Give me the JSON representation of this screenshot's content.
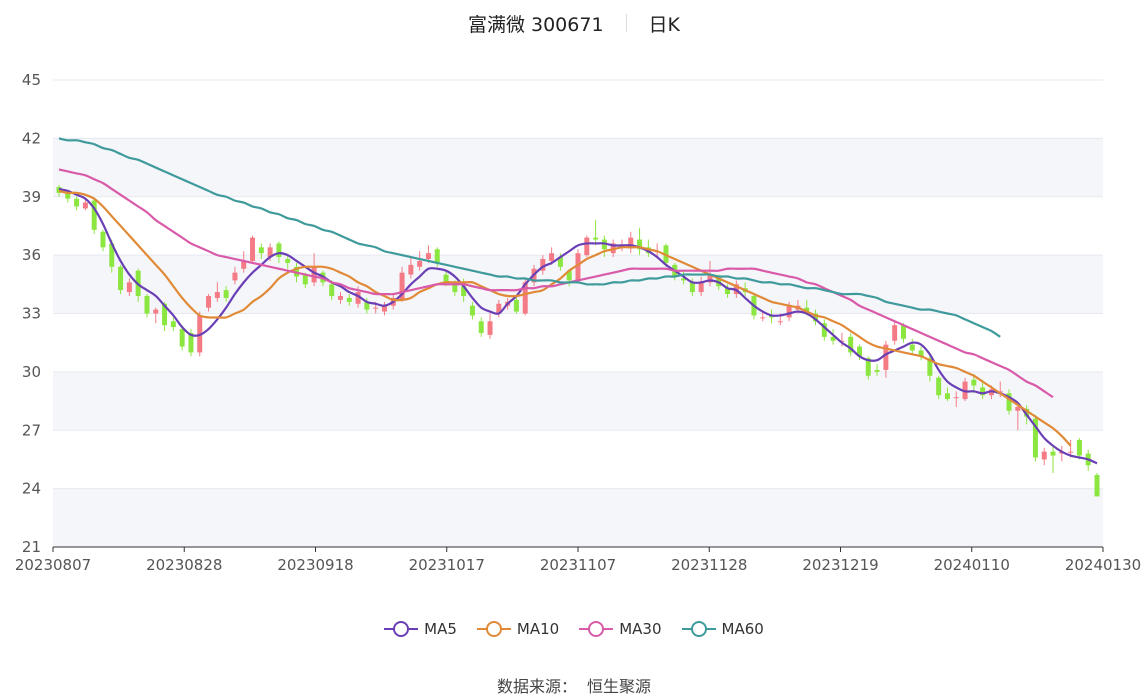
{
  "header": {
    "stock_name": "富满微 300671",
    "period": "日K"
  },
  "source": {
    "label": "数据来源：",
    "value": "恒生聚源"
  },
  "colors": {
    "up": "#f47b86",
    "down": "#8be63f",
    "band": "#f5f6fa",
    "grid": "#e6e9f0",
    "MA5": "#6a3fb5",
    "MA10": "#e08a38",
    "MA30": "#d85aa8",
    "MA60": "#3f9a9c"
  },
  "chart_data": {
    "type": "candlestick",
    "ylim": [
      21,
      45
    ],
    "yticks": [
      21,
      24,
      27,
      30,
      33,
      36,
      39,
      42,
      45
    ],
    "xtick_labels": [
      "20230807",
      "20230828",
      "20230918",
      "20231017",
      "20231107",
      "20231128",
      "20231219",
      "20240110",
      "20240130"
    ],
    "grid": true,
    "legend_position": "bottom",
    "candles": [
      [
        39.5,
        39.2,
        39.6,
        39.0
      ],
      [
        39.2,
        38.9,
        39.3,
        38.7
      ],
      [
        38.9,
        38.5,
        39.0,
        38.3
      ],
      [
        38.4,
        38.7,
        38.9,
        38.3
      ],
      [
        38.8,
        37.3,
        38.9,
        37.1
      ],
      [
        37.2,
        36.4,
        37.3,
        36.2
      ],
      [
        36.6,
        35.4,
        36.8,
        35.1
      ],
      [
        35.4,
        34.2,
        35.5,
        34.0
      ],
      [
        34.1,
        34.6,
        34.8,
        33.9
      ],
      [
        35.2,
        33.9,
        35.3,
        33.6
      ],
      [
        33.9,
        33.0,
        34.0,
        32.8
      ],
      [
        33.0,
        33.2,
        33.3,
        32.5
      ],
      [
        33.5,
        32.4,
        33.6,
        32.1
      ],
      [
        32.6,
        32.3,
        32.8,
        32.1
      ],
      [
        32.2,
        31.3,
        32.4,
        31.1
      ],
      [
        32.0,
        31.0,
        32.2,
        30.8
      ],
      [
        31.0,
        32.9,
        33.1,
        30.8
      ],
      [
        33.3,
        33.9,
        34.0,
        33.1
      ],
      [
        33.8,
        34.1,
        34.6,
        33.6
      ],
      [
        34.2,
        33.8,
        34.4,
        33.6
      ],
      [
        34.7,
        35.1,
        35.4,
        34.5
      ],
      [
        35.3,
        35.7,
        36.2,
        35.1
      ],
      [
        35.7,
        36.9,
        37.0,
        35.6
      ],
      [
        36.4,
        36.1,
        36.6,
        35.8
      ],
      [
        35.9,
        36.4,
        36.6,
        35.7
      ],
      [
        36.6,
        35.9,
        36.7,
        35.6
      ],
      [
        35.8,
        35.6,
        36.0,
        35.3
      ],
      [
        35.4,
        34.9,
        35.6,
        34.6
      ],
      [
        35.0,
        34.5,
        35.1,
        34.3
      ],
      [
        34.6,
        35.4,
        36.1,
        34.4
      ],
      [
        35.1,
        34.6,
        35.2,
        34.4
      ],
      [
        34.5,
        33.9,
        34.7,
        33.7
      ],
      [
        33.7,
        33.9,
        34.1,
        33.5
      ],
      [
        33.8,
        33.6,
        34.0,
        33.4
      ],
      [
        33.5,
        34.1,
        34.4,
        33.3
      ],
      [
        33.6,
        33.2,
        33.8,
        33.0
      ],
      [
        33.3,
        33.3,
        33.6,
        33.0
      ],
      [
        33.1,
        33.4,
        33.6,
        32.9
      ],
      [
        33.4,
        33.8,
        34.0,
        33.2
      ],
      [
        33.7,
        35.1,
        35.4,
        33.6
      ],
      [
        35.0,
        35.5,
        35.9,
        34.8
      ],
      [
        35.4,
        35.7,
        36.2,
        35.2
      ],
      [
        35.8,
        36.1,
        36.5,
        35.6
      ],
      [
        36.3,
        35.6,
        36.4,
        35.4
      ],
      [
        35.0,
        34.6,
        35.2,
        34.4
      ],
      [
        34.5,
        34.1,
        34.7,
        33.9
      ],
      [
        34.4,
        33.9,
        34.8,
        33.6
      ],
      [
        33.4,
        32.9,
        33.6,
        32.7
      ],
      [
        32.6,
        32.0,
        32.8,
        31.8
      ],
      [
        31.9,
        32.6,
        33.0,
        31.7
      ],
      [
        33.0,
        33.5,
        33.7,
        32.8
      ],
      [
        33.4,
        33.6,
        33.8,
        33.2
      ],
      [
        33.7,
        33.1,
        33.9,
        33.0
      ],
      [
        33.0,
        34.6,
        34.8,
        32.9
      ],
      [
        34.6,
        35.3,
        35.5,
        34.4
      ],
      [
        35.2,
        35.8,
        36.0,
        35.0
      ],
      [
        35.7,
        36.1,
        36.4,
        35.5
      ],
      [
        35.9,
        35.4,
        36.1,
        35.2
      ],
      [
        35.2,
        34.7,
        35.3,
        34.4
      ],
      [
        34.7,
        36.1,
        36.3,
        34.6
      ],
      [
        36.0,
        36.9,
        37.0,
        35.9
      ],
      [
        36.9,
        36.8,
        37.8,
        36.5
      ],
      [
        36.8,
        36.3,
        37.0,
        35.9
      ],
      [
        36.1,
        36.6,
        36.8,
        35.9
      ],
      [
        36.5,
        36.5,
        36.8,
        36.2
      ],
      [
        36.4,
        36.9,
        37.2,
        36.1
      ],
      [
        36.8,
        36.3,
        37.4,
        36.0
      ],
      [
        36.4,
        36.1,
        36.8,
        35.9
      ],
      [
        36.2,
        36.2,
        36.6,
        35.9
      ],
      [
        36.5,
        35.6,
        36.6,
        35.4
      ],
      [
        35.5,
        34.9,
        35.6,
        34.7
      ],
      [
        34.8,
        34.7,
        35.2,
        34.5
      ],
      [
        34.6,
        34.1,
        34.8,
        33.9
      ],
      [
        34.1,
        34.6,
        34.9,
        33.9
      ],
      [
        34.6,
        35.0,
        35.7,
        34.4
      ],
      [
        34.9,
        34.4,
        35.0,
        34.2
      ],
      [
        34.3,
        34.0,
        34.5,
        33.8
      ],
      [
        34.0,
        34.5,
        34.7,
        33.8
      ],
      [
        34.3,
        34.1,
        34.6,
        33.9
      ],
      [
        33.9,
        32.9,
        34.0,
        32.7
      ],
      [
        32.8,
        32.8,
        33.1,
        32.6
      ],
      [
        32.9,
        32.8,
        33.2,
        32.5
      ],
      [
        32.6,
        32.6,
        33.0,
        32.4
      ],
      [
        32.8,
        33.4,
        33.6,
        32.6
      ],
      [
        33.2,
        33.4,
        33.7,
        33.0
      ],
      [
        33.3,
        33.1,
        33.7,
        32.9
      ],
      [
        33.0,
        32.6,
        33.2,
        32.4
      ],
      [
        32.5,
        31.8,
        32.7,
        31.6
      ],
      [
        31.8,
        31.6,
        32.2,
        31.4
      ],
      [
        31.6,
        31.6,
        32.0,
        31.3
      ],
      [
        31.8,
        31.0,
        32.0,
        30.8
      ],
      [
        31.3,
        30.8,
        31.4,
        30.6
      ],
      [
        30.7,
        29.8,
        30.8,
        29.6
      ],
      [
        30.1,
        30.0,
        30.4,
        29.8
      ],
      [
        30.1,
        31.4,
        31.6,
        29.7
      ],
      [
        31.6,
        32.4,
        32.6,
        31.4
      ],
      [
        32.4,
        31.7,
        32.5,
        31.5
      ],
      [
        31.4,
        31.1,
        31.7,
        30.9
      ],
      [
        31.1,
        30.8,
        31.3,
        30.6
      ],
      [
        30.7,
        29.8,
        30.9,
        29.5
      ],
      [
        29.7,
        28.8,
        29.8,
        28.6
      ],
      [
        28.9,
        28.6,
        29.2,
        28.5
      ],
      [
        28.7,
        28.7,
        29.0,
        28.2
      ],
      [
        28.6,
        29.5,
        29.7,
        28.5
      ],
      [
        29.6,
        29.3,
        29.9,
        28.9
      ],
      [
        29.2,
        28.8,
        29.6,
        28.6
      ],
      [
        28.8,
        29.1,
        29.3,
        28.6
      ],
      [
        29.0,
        29.0,
        29.5,
        28.7
      ],
      [
        28.9,
        28.0,
        29.1,
        27.8
      ],
      [
        28.0,
        28.2,
        28.4,
        27.0
      ],
      [
        28.1,
        27.7,
        28.3,
        27.3
      ],
      [
        27.6,
        25.6,
        27.8,
        25.4
      ],
      [
        25.5,
        25.9,
        26.1,
        25.2
      ],
      [
        25.9,
        25.7,
        26.2,
        24.8
      ],
      [
        25.8,
        25.9,
        26.2,
        25.4
      ],
      [
        25.9,
        25.9,
        26.5,
        25.6
      ],
      [
        26.5,
        25.7,
        26.6,
        25.5
      ],
      [
        25.8,
        25.2,
        26.0,
        24.9
      ],
      [
        24.7,
        23.6,
        24.8,
        23.6
      ]
    ],
    "series": [
      {
        "name": "MA5",
        "values": [
          39.4,
          39.3,
          39.1,
          38.9,
          38.4,
          37.6,
          36.6,
          35.7,
          35.0,
          34.5,
          34.2,
          33.9,
          33.4,
          32.9,
          32.3,
          31.9,
          31.9,
          32.2,
          32.7,
          33.3,
          34.0,
          34.6,
          35.1,
          35.5,
          35.9,
          36.1,
          36.0,
          35.7,
          35.4,
          35.1,
          34.9,
          34.6,
          34.4,
          34.1,
          33.9,
          33.6,
          33.5,
          33.4,
          33.6,
          34.0,
          34.5,
          34.9,
          35.3,
          35.3,
          35.2,
          34.9,
          34.4,
          33.8,
          33.3,
          33.1,
          33.0,
          33.5,
          33.9,
          34.5,
          35.0,
          35.4,
          35.6,
          35.9,
          36.2,
          36.5,
          36.6,
          36.6,
          36.6,
          36.5,
          36.5,
          36.5,
          36.4,
          36.2,
          35.9,
          35.5,
          35.2,
          34.9,
          34.6,
          34.6,
          34.7,
          34.6,
          34.3,
          34.2,
          33.8,
          33.4,
          33.1,
          32.9,
          32.9,
          33.0,
          33.1,
          33.0,
          32.7,
          32.3,
          31.9,
          31.5,
          31.2,
          30.8,
          30.6,
          30.6,
          30.9,
          31.1,
          31.3,
          31.5,
          31.4,
          30.9,
          30.1,
          29.5,
          29.2,
          29.0,
          29.0,
          28.9,
          29.0,
          28.9,
          28.7,
          28.4,
          27.8,
          27.2,
          26.6,
          26.2,
          25.9,
          25.7,
          25.6,
          25.5,
          25.3
        ]
      },
      {
        "name": "MA10",
        "values": [
          39.3,
          39.2,
          39.2,
          39.1,
          38.9,
          38.5,
          38.0,
          37.5,
          37.0,
          36.5,
          36.0,
          35.5,
          35.0,
          34.4,
          33.8,
          33.3,
          32.9,
          32.8,
          32.8,
          32.8,
          33.0,
          33.2,
          33.6,
          33.9,
          34.3,
          34.8,
          35.1,
          35.3,
          35.4,
          35.4,
          35.4,
          35.3,
          35.1,
          34.9,
          34.6,
          34.4,
          34.1,
          33.9,
          33.7,
          33.7,
          33.8,
          34.1,
          34.3,
          34.5,
          34.6,
          34.6,
          34.6,
          34.6,
          34.4,
          34.2,
          34.0,
          33.9,
          33.9,
          34.0,
          34.1,
          34.2,
          34.5,
          34.8,
          35.2,
          35.5,
          35.8,
          36.0,
          36.2,
          36.3,
          36.4,
          36.4,
          36.4,
          36.3,
          36.2,
          36.0,
          35.8,
          35.6,
          35.4,
          35.2,
          35.0,
          34.8,
          34.6,
          34.4,
          34.2,
          34.0,
          33.8,
          33.6,
          33.5,
          33.4,
          33.3,
          33.1,
          32.9,
          32.8,
          32.6,
          32.4,
          32.1,
          31.8,
          31.5,
          31.3,
          31.2,
          31.1,
          31.0,
          30.9,
          30.8,
          30.6,
          30.4,
          30.3,
          30.2,
          30.0,
          29.8,
          29.5,
          29.2,
          28.9,
          28.6,
          28.3,
          28.0,
          27.7,
          27.4,
          27.1,
          26.7,
          26.2
        ]
      },
      {
        "name": "MA30",
        "values": [
          40.4,
          40.3,
          40.2,
          40.1,
          39.9,
          39.7,
          39.4,
          39.1,
          38.8,
          38.5,
          38.2,
          37.8,
          37.5,
          37.2,
          36.9,
          36.6,
          36.4,
          36.2,
          36.0,
          35.9,
          35.8,
          35.7,
          35.6,
          35.5,
          35.4,
          35.3,
          35.2,
          35.1,
          35.0,
          34.9,
          34.8,
          34.6,
          34.5,
          34.3,
          34.2,
          34.1,
          34.0,
          34.0,
          34.0,
          34.1,
          34.2,
          34.3,
          34.4,
          34.5,
          34.5,
          34.5,
          34.5,
          34.4,
          34.3,
          34.2,
          34.2,
          34.2,
          34.2,
          34.3,
          34.3,
          34.4,
          34.4,
          34.5,
          34.6,
          34.7,
          34.8,
          34.9,
          35.0,
          35.1,
          35.2,
          35.3,
          35.3,
          35.3,
          35.3,
          35.3,
          35.2,
          35.2,
          35.2,
          35.2,
          35.2,
          35.2,
          35.3,
          35.3,
          35.3,
          35.3,
          35.2,
          35.1,
          35.0,
          34.9,
          34.8,
          34.6,
          34.5,
          34.3,
          34.1,
          33.9,
          33.7,
          33.4,
          33.2,
          33.0,
          32.8,
          32.6,
          32.4,
          32.2,
          32.0,
          31.8,
          31.6,
          31.4,
          31.2,
          31.0,
          30.9,
          30.7,
          30.5,
          30.3,
          30.1,
          29.8,
          29.5,
          29.3,
          29.0,
          28.7
        ]
      },
      {
        "name": "MA60",
        "values": [
          42.0,
          41.9,
          41.9,
          41.8,
          41.7,
          41.5,
          41.4,
          41.2,
          41.0,
          40.9,
          40.7,
          40.5,
          40.3,
          40.1,
          39.9,
          39.7,
          39.5,
          39.3,
          39.1,
          39.0,
          38.8,
          38.7,
          38.5,
          38.4,
          38.2,
          38.1,
          37.9,
          37.8,
          37.6,
          37.5,
          37.3,
          37.2,
          37.0,
          36.8,
          36.6,
          36.5,
          36.4,
          36.2,
          36.1,
          36.0,
          35.9,
          35.8,
          35.7,
          35.6,
          35.5,
          35.4,
          35.3,
          35.2,
          35.1,
          35.0,
          34.9,
          34.9,
          34.8,
          34.8,
          34.7,
          34.7,
          34.7,
          34.6,
          34.6,
          34.6,
          34.5,
          34.5,
          34.5,
          34.6,
          34.6,
          34.7,
          34.7,
          34.8,
          34.8,
          34.9,
          34.9,
          35.0,
          35.0,
          35.0,
          35.0,
          34.9,
          34.9,
          34.8,
          34.8,
          34.7,
          34.6,
          34.6,
          34.5,
          34.5,
          34.4,
          34.3,
          34.3,
          34.2,
          34.1,
          34.0,
          34.0,
          34.0,
          33.9,
          33.8,
          33.6,
          33.5,
          33.4,
          33.3,
          33.2,
          33.2,
          33.1,
          33.0,
          32.9,
          32.7,
          32.5,
          32.3,
          32.1,
          31.8
        ]
      }
    ]
  }
}
